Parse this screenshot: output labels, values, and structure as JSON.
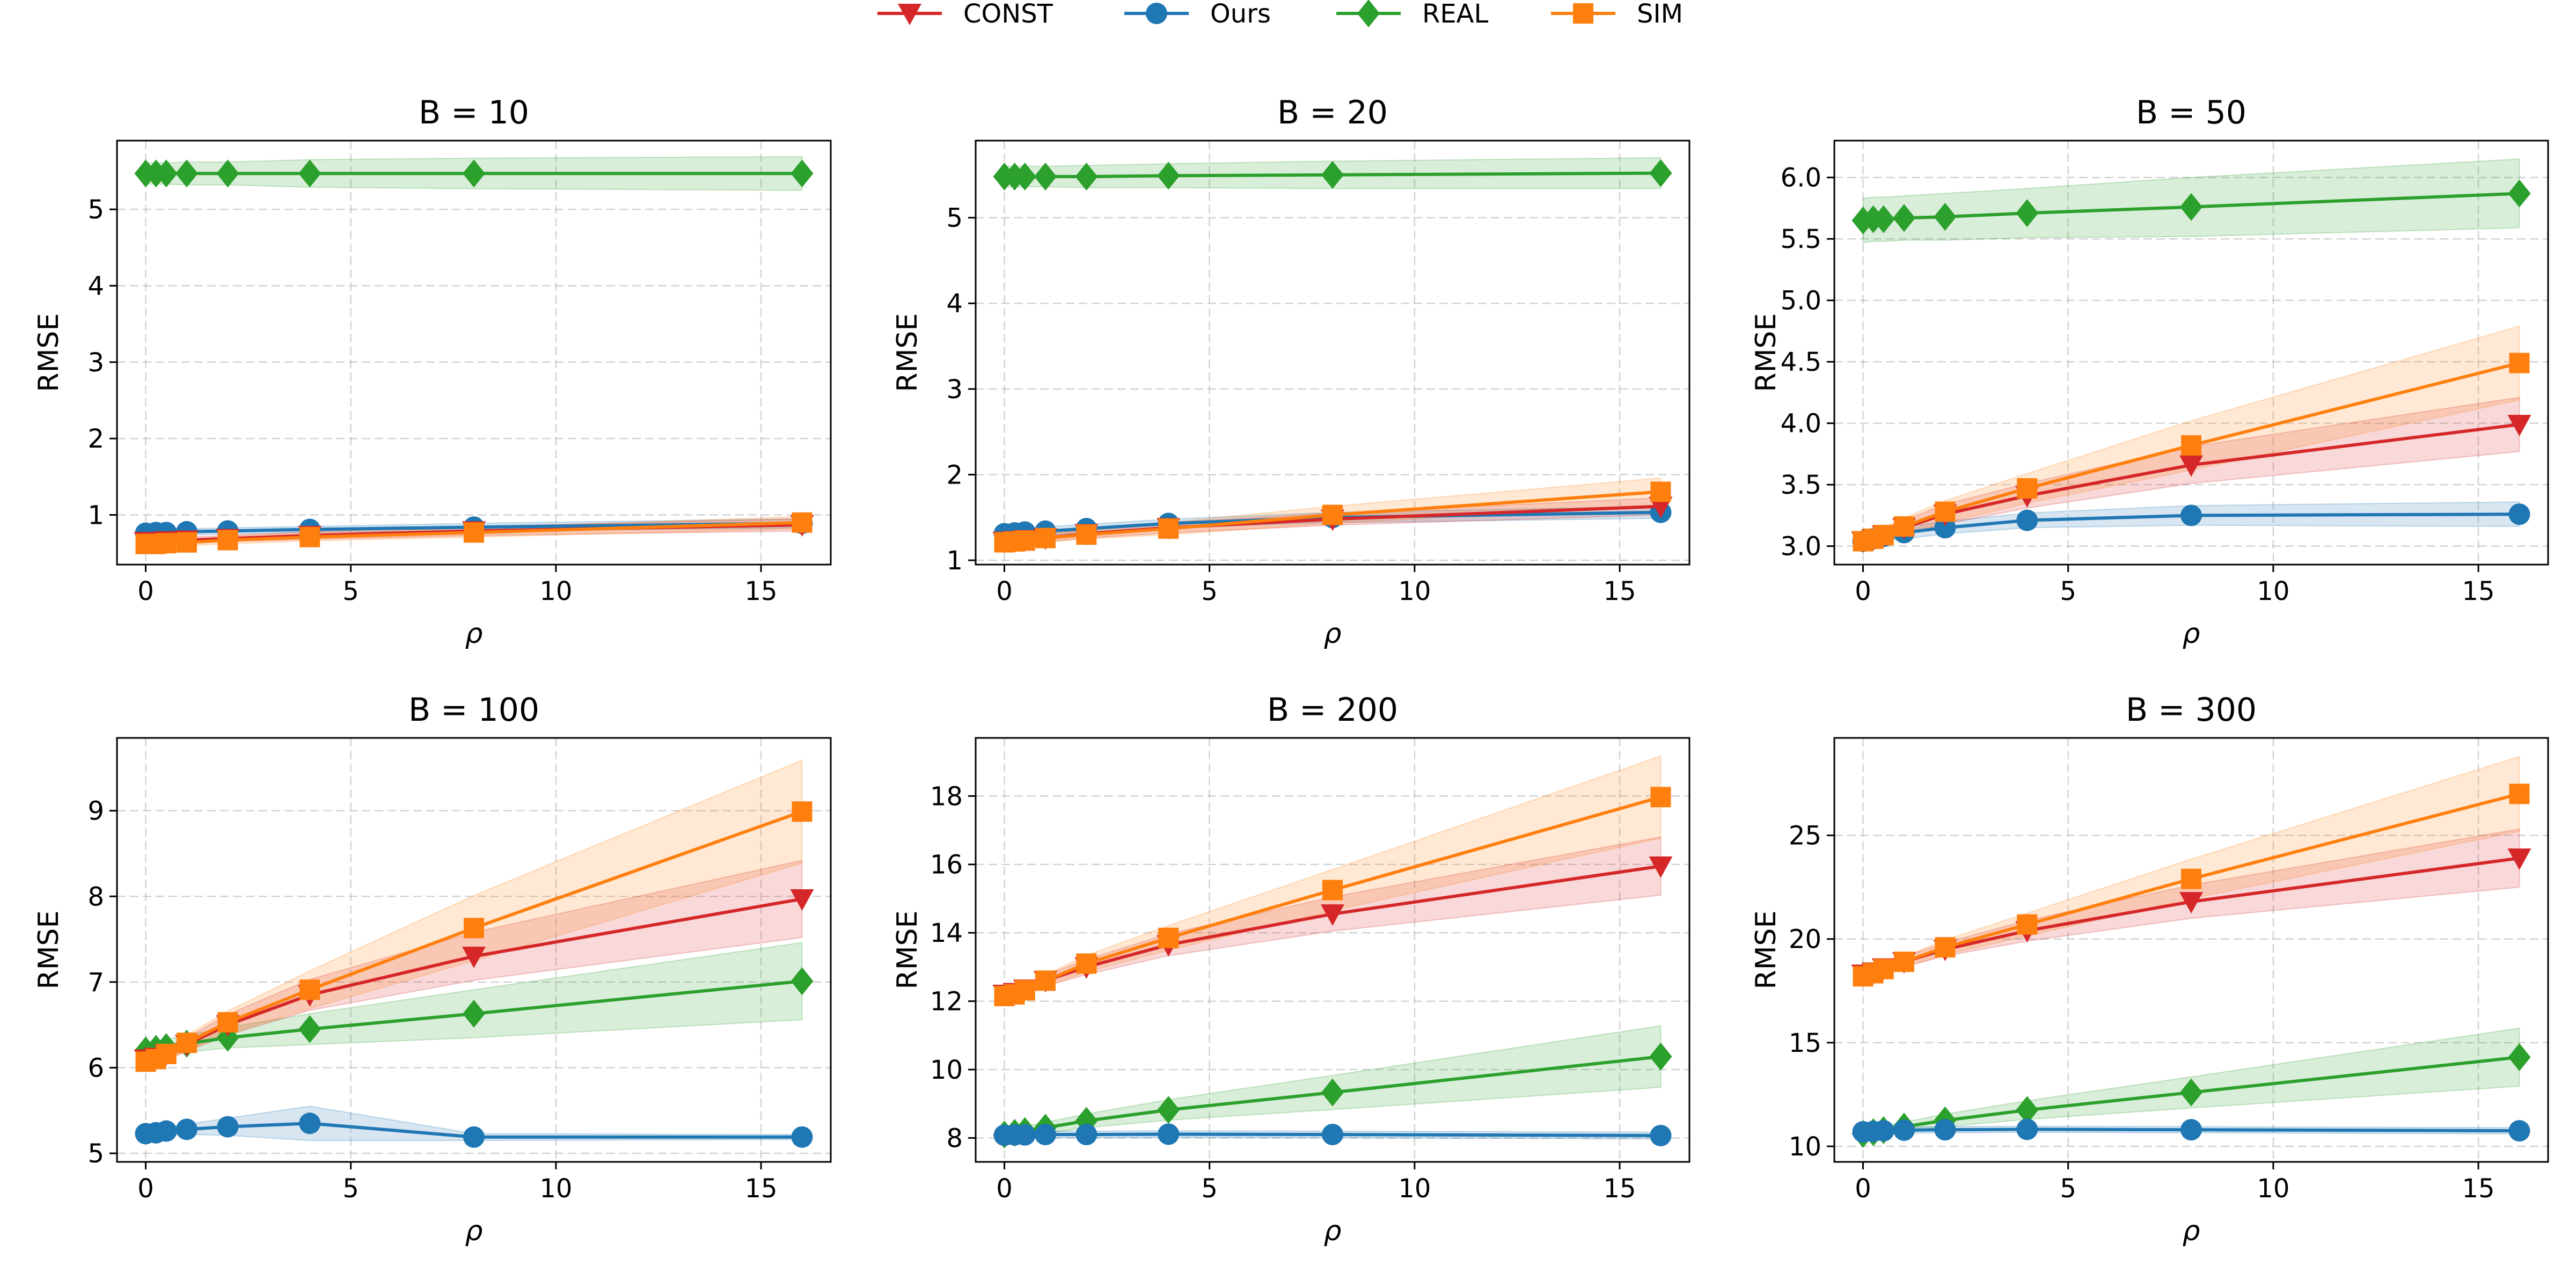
{
  "chart_data": {
    "type": "line",
    "legend": {
      "placement": "top-center",
      "entries": [
        {
          "name": "CONST",
          "color": "#d62728",
          "marker": "triangle-down"
        },
        {
          "name": "Ours",
          "color": "#1f77b4",
          "marker": "circle"
        },
        {
          "name": "REAL",
          "color": "#2ca02c",
          "marker": "diamond"
        },
        {
          "name": "SIM",
          "color": "#ff7f0e",
          "marker": "square"
        }
      ]
    },
    "x": [
      0,
      0.25,
      0.5,
      1,
      2,
      4,
      8,
      16
    ],
    "xlabel": "ρ",
    "ylabel": "RMSE",
    "xlim": [
      -0.7,
      16.7
    ],
    "xticks": [
      0,
      5,
      10,
      15
    ],
    "grid": true,
    "subplots": [
      {
        "title": "B = 10",
        "ylim": [
          0.35,
          5.9
        ],
        "yticks": [
          1,
          2,
          3,
          4,
          5
        ],
        "series": [
          {
            "name": "CONST",
            "values": [
              0.65,
              0.65,
              0.66,
              0.67,
              0.69,
              0.73,
              0.79,
              0.87
            ],
            "band": [
              0.04,
              0.04,
              0.04,
              0.04,
              0.04,
              0.05,
              0.06,
              0.08
            ]
          },
          {
            "name": "Ours",
            "values": [
              0.76,
              0.77,
              0.77,
              0.78,
              0.79,
              0.81,
              0.84,
              0.89
            ],
            "band": [
              0.04,
              0.04,
              0.04,
              0.04,
              0.04,
              0.04,
              0.05,
              0.06
            ]
          },
          {
            "name": "REAL",
            "values": [
              5.47,
              5.47,
              5.47,
              5.47,
              5.47,
              5.47,
              5.47,
              5.47
            ],
            "band": [
              0.14,
              0.14,
              0.14,
              0.15,
              0.15,
              0.18,
              0.2,
              0.22
            ]
          },
          {
            "name": "SIM",
            "values": [
              0.62,
              0.62,
              0.63,
              0.64,
              0.67,
              0.71,
              0.77,
              0.9
            ],
            "band": [
              0.04,
              0.04,
              0.04,
              0.04,
              0.05,
              0.05,
              0.06,
              0.08
            ]
          }
        ]
      },
      {
        "title": "B = 20",
        "ylim": [
          0.95,
          5.9
        ],
        "yticks": [
          1,
          2,
          3,
          4,
          5
        ],
        "series": [
          {
            "name": "CONST",
            "values": [
              1.22,
              1.23,
              1.24,
              1.26,
              1.31,
              1.38,
              1.48,
              1.63
            ],
            "band": [
              0.04,
              0.04,
              0.04,
              0.04,
              0.05,
              0.06,
              0.07,
              0.1
            ]
          },
          {
            "name": "Ours",
            "values": [
              1.31,
              1.32,
              1.33,
              1.34,
              1.37,
              1.43,
              1.5,
              1.56
            ],
            "band": [
              0.05,
              0.05,
              0.05,
              0.05,
              0.05,
              0.05,
              0.06,
              0.07
            ]
          },
          {
            "name": "REAL",
            "values": [
              5.48,
              5.48,
              5.48,
              5.48,
              5.48,
              5.49,
              5.5,
              5.52
            ],
            "band": [
              0.12,
              0.12,
              0.12,
              0.12,
              0.13,
              0.14,
              0.16,
              0.18
            ]
          },
          {
            "name": "SIM",
            "values": [
              1.21,
              1.22,
              1.23,
              1.26,
              1.3,
              1.37,
              1.53,
              1.8
            ],
            "band": [
              0.04,
              0.04,
              0.04,
              0.05,
              0.05,
              0.07,
              0.1,
              0.16
            ]
          }
        ]
      },
      {
        "title": "B = 50",
        "ylim": [
          2.85,
          6.3
        ],
        "yticks": [
          3.0,
          3.5,
          4.0,
          4.5,
          5.0,
          5.5,
          6.0
        ],
        "series": [
          {
            "name": "CONST",
            "values": [
              3.04,
              3.06,
              3.09,
              3.15,
              3.26,
              3.41,
              3.66,
              3.99
            ],
            "band": [
              0.05,
              0.05,
              0.05,
              0.06,
              0.08,
              0.1,
              0.15,
              0.22
            ]
          },
          {
            "name": "Ours",
            "values": [
              3.04,
              3.06,
              3.08,
              3.11,
              3.15,
              3.21,
              3.25,
              3.26
            ],
            "band": [
              0.04,
              0.04,
              0.04,
              0.05,
              0.05,
              0.06,
              0.08,
              0.1
            ]
          },
          {
            "name": "REAL",
            "values": [
              5.65,
              5.66,
              5.66,
              5.67,
              5.68,
              5.71,
              5.76,
              5.87
            ],
            "band": [
              0.18,
              0.18,
              0.18,
              0.18,
              0.19,
              0.2,
              0.24,
              0.28
            ]
          },
          {
            "name": "SIM",
            "values": [
              3.04,
              3.06,
              3.09,
              3.16,
              3.28,
              3.47,
              3.82,
              4.49
            ],
            "band": [
              0.05,
              0.05,
              0.06,
              0.07,
              0.09,
              0.12,
              0.2,
              0.3
            ]
          }
        ]
      },
      {
        "title": "B = 100",
        "ylim": [
          4.9,
          9.85
        ],
        "yticks": [
          5,
          6,
          7,
          8,
          9
        ],
        "series": [
          {
            "name": "CONST",
            "values": [
              6.1,
              6.12,
              6.16,
              6.27,
              6.5,
              6.85,
              7.3,
              7.97
            ],
            "band": [
              0.06,
              0.06,
              0.07,
              0.08,
              0.12,
              0.18,
              0.28,
              0.45
            ]
          },
          {
            "name": "Ours",
            "values": [
              5.23,
              5.24,
              5.26,
              5.28,
              5.31,
              5.35,
              5.19,
              5.19
            ],
            "band": [
              0.04,
              0.04,
              0.05,
              0.06,
              0.1,
              0.2,
              0.04,
              0.03
            ]
          },
          {
            "name": "REAL",
            "values": [
              6.2,
              6.22,
              6.24,
              6.28,
              6.35,
              6.45,
              6.63,
              7.01
            ],
            "band": [
              0.08,
              0.08,
              0.09,
              0.1,
              0.12,
              0.18,
              0.28,
              0.45
            ]
          },
          {
            "name": "SIM",
            "values": [
              6.07,
              6.1,
              6.16,
              6.29,
              6.53,
              6.91,
              7.63,
              8.99
            ],
            "band": [
              0.06,
              0.06,
              0.07,
              0.09,
              0.13,
              0.22,
              0.38,
              0.6
            ]
          }
        ]
      },
      {
        "title": "B = 200",
        "ylim": [
          7.3,
          19.7
        ],
        "yticks": [
          8,
          10,
          12,
          14,
          16,
          18
        ],
        "series": [
          {
            "name": "CONST",
            "values": [
              12.2,
              12.25,
              12.35,
              12.6,
              13.0,
              13.65,
              14.55,
              15.95
            ],
            "band": [
              0.12,
              0.12,
              0.14,
              0.16,
              0.22,
              0.32,
              0.5,
              0.85
            ]
          },
          {
            "name": "Ours",
            "values": [
              8.08,
              8.09,
              8.09,
              8.1,
              8.1,
              8.11,
              8.1,
              8.07
            ],
            "band": [
              0.1,
              0.1,
              0.1,
              0.1,
              0.1,
              0.1,
              0.1,
              0.1
            ]
          },
          {
            "name": "REAL",
            "values": [
              8.1,
              8.15,
              8.2,
              8.3,
              8.5,
              8.82,
              9.33,
              10.38
            ],
            "band": [
              0.12,
              0.12,
              0.14,
              0.16,
              0.2,
              0.3,
              0.5,
              0.9
            ]
          },
          {
            "name": "SIM",
            "values": [
              12.15,
              12.2,
              12.32,
              12.6,
              13.1,
              13.85,
              15.25,
              17.97
            ],
            "band": [
              0.12,
              0.12,
              0.14,
              0.17,
              0.24,
              0.36,
              0.6,
              1.2
            ]
          }
        ]
      },
      {
        "title": "B = 300",
        "ylim": [
          9.25,
          29.7
        ],
        "yticks": [
          10,
          15,
          20,
          25
        ],
        "series": [
          {
            "name": "CONST",
            "values": [
              18.3,
              18.4,
              18.6,
              18.9,
              19.5,
              20.4,
              21.8,
              23.9
            ],
            "band": [
              0.18,
              0.18,
              0.2,
              0.24,
              0.32,
              0.5,
              0.8,
              1.4
            ]
          },
          {
            "name": "Ours",
            "values": [
              10.7,
              10.72,
              10.75,
              10.78,
              10.8,
              10.82,
              10.8,
              10.75
            ],
            "band": [
              0.15,
              0.15,
              0.15,
              0.15,
              0.15,
              0.15,
              0.15,
              0.15
            ]
          },
          {
            "name": "REAL",
            "values": [
              10.6,
              10.68,
              10.78,
              10.95,
              11.25,
              11.75,
              12.6,
              14.3
            ],
            "band": [
              0.15,
              0.15,
              0.18,
              0.22,
              0.3,
              0.45,
              0.75,
              1.4
            ]
          },
          {
            "name": "SIM",
            "values": [
              18.2,
              18.35,
              18.55,
              18.9,
              19.6,
              20.7,
              22.9,
              27.0
            ],
            "band": [
              0.18,
              0.18,
              0.2,
              0.26,
              0.35,
              0.55,
              0.95,
              1.8
            ]
          }
        ]
      }
    ]
  }
}
